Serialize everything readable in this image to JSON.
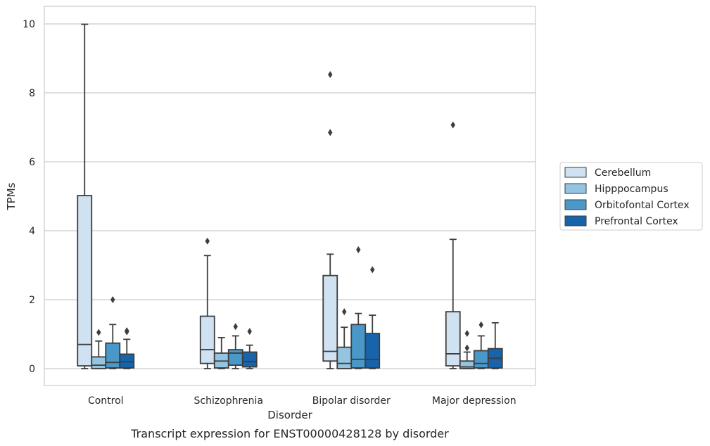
{
  "caption": "Transcript expression for ENST00000428128 by disorder",
  "chart_data": {
    "type": "box",
    "title": "",
    "xlabel": "Disorder",
    "ylabel": "TPMs",
    "ylim": [
      -0.48,
      10.48
    ],
    "yticks": [
      0,
      2,
      4,
      6,
      8,
      10
    ],
    "grid": "horizontal",
    "legend_position": "right",
    "categories": [
      "Control",
      "Schizophrenia",
      "Bipolar disorder",
      "Major depression"
    ],
    "series": [
      {
        "name": "Cerebellum",
        "color": "#d0e1f2",
        "boxes": [
          {
            "whislo": 0.0,
            "q1": 0.08,
            "med": 0.7,
            "q3": 5.02,
            "whishi": 9.99,
            "fliers": []
          },
          {
            "whislo": 0.0,
            "q1": 0.15,
            "med": 0.55,
            "q3": 1.52,
            "whishi": 3.28,
            "fliers": [
              3.7
            ]
          },
          {
            "whislo": 0.0,
            "q1": 0.22,
            "med": 0.5,
            "q3": 2.7,
            "whishi": 3.32,
            "fliers": [
              6.85,
              8.53
            ]
          },
          {
            "whislo": 0.0,
            "q1": 0.08,
            "med": 0.43,
            "q3": 1.65,
            "whishi": 3.75,
            "fliers": [
              7.07
            ]
          }
        ]
      },
      {
        "name": "Hipppocampus",
        "color": "#94c4df",
        "boxes": [
          {
            "whislo": 0.0,
            "q1": 0.0,
            "med": 0.1,
            "q3": 0.34,
            "whishi": 0.8,
            "fliers": [
              1.05
            ]
          },
          {
            "whislo": 0.0,
            "q1": 0.02,
            "med": 0.22,
            "q3": 0.45,
            "whishi": 0.9,
            "fliers": []
          },
          {
            "whislo": 0.0,
            "q1": 0.0,
            "med": 0.15,
            "q3": 0.62,
            "whishi": 1.2,
            "fliers": [
              1.65
            ]
          },
          {
            "whislo": 0.0,
            "q1": 0.0,
            "med": 0.05,
            "q3": 0.22,
            "whishi": 0.48,
            "fliers": [
              0.6,
              1.02
            ]
          }
        ]
      },
      {
        "name": "Orbitofontal Cortex",
        "color": "#4a98c9",
        "boxes": [
          {
            "whislo": 0.0,
            "q1": 0.02,
            "med": 0.18,
            "q3": 0.74,
            "whishi": 1.28,
            "fliers": [
              2.0
            ]
          },
          {
            "whislo": 0.0,
            "q1": 0.1,
            "med": 0.45,
            "q3": 0.55,
            "whishi": 0.95,
            "fliers": [
              1.22
            ]
          },
          {
            "whislo": 0.0,
            "q1": 0.02,
            "med": 0.27,
            "q3": 1.28,
            "whishi": 1.6,
            "fliers": [
              3.45
            ]
          },
          {
            "whislo": 0.0,
            "q1": 0.02,
            "med": 0.15,
            "q3": 0.52,
            "whishi": 0.95,
            "fliers": [
              1.27
            ]
          }
        ]
      },
      {
        "name": "Prefrontal Cortex",
        "color": "#1764ab",
        "boxes": [
          {
            "whislo": 0.0,
            "q1": 0.02,
            "med": 0.2,
            "q3": 0.42,
            "whishi": 0.85,
            "fliers": [
              1.07,
              1.1
            ]
          },
          {
            "whislo": 0.0,
            "q1": 0.05,
            "med": 0.2,
            "q3": 0.48,
            "whishi": 0.68,
            "fliers": [
              1.08
            ]
          },
          {
            "whislo": 0.0,
            "q1": 0.02,
            "med": 0.27,
            "q3": 1.02,
            "whishi": 1.55,
            "fliers": [
              2.87
            ]
          },
          {
            "whislo": 0.0,
            "q1": 0.02,
            "med": 0.3,
            "q3": 0.58,
            "whishi": 1.33,
            "fliers": []
          }
        ]
      }
    ]
  }
}
